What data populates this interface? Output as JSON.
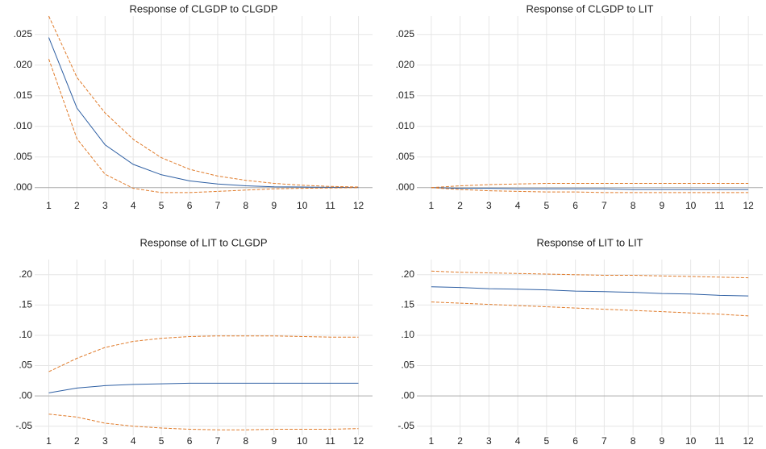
{
  "chart_data": [
    {
      "type": "line",
      "title": "Response of CLGDP to CLGDP",
      "categories": [
        "1",
        "2",
        "3",
        "4",
        "5",
        "6",
        "7",
        "8",
        "9",
        "10",
        "11",
        "12"
      ],
      "ylim": [
        -0.002,
        0.028
      ],
      "yticks": [
        {
          "value": 0,
          "label": ".000"
        },
        {
          "value": 0.005,
          "label": ".005"
        },
        {
          "value": 0.01,
          "label": ".010"
        },
        {
          "value": 0.015,
          "label": ".015"
        },
        {
          "value": 0.02,
          "label": ".020"
        },
        {
          "value": 0.025,
          "label": ".025"
        }
      ],
      "grid": true,
      "series": [
        {
          "color": "#2e5fa3",
          "dashed": false,
          "values": [
            0.0245,
            0.013,
            0.007,
            0.0038,
            0.0021,
            0.0011,
            0.0006,
            0.0003,
            0.00015,
            0.0001,
            5e-05,
            2e-05
          ]
        },
        {
          "color": "#e07b2a",
          "dashed": true,
          "values": [
            0.028,
            0.018,
            0.0122,
            0.0079,
            0.0049,
            0.003,
            0.0019,
            0.0012,
            0.0007,
            0.0004,
            0.0002,
            0.0001
          ]
        },
        {
          "color": "#e07b2a",
          "dashed": true,
          "values": [
            0.021,
            0.008,
            0.0022,
            -0.0001,
            -0.0008,
            -0.0008,
            -0.0006,
            -0.0004,
            -0.0002,
            -0.0001,
            -5e-05,
            0
          ]
        }
      ]
    },
    {
      "type": "line",
      "title": "Response of CLGDP to LIT",
      "categories": [
        "1",
        "2",
        "3",
        "4",
        "5",
        "6",
        "7",
        "8",
        "9",
        "10",
        "11",
        "12"
      ],
      "ylim": [
        -0.002,
        0.028
      ],
      "yticks": [
        {
          "value": 0,
          "label": ".000"
        },
        {
          "value": 0.005,
          "label": ".005"
        },
        {
          "value": 0.01,
          "label": ".010"
        },
        {
          "value": 0.015,
          "label": ".015"
        },
        {
          "value": 0.02,
          "label": ".020"
        },
        {
          "value": 0.025,
          "label": ".025"
        }
      ],
      "grid": true,
      "series": [
        {
          "color": "#2e5fa3",
          "dashed": false,
          "values": [
            0,
            -0.0001,
            -0.0001,
            -0.0002,
            -0.0002,
            -0.0002,
            -0.0002,
            -0.0003,
            -0.0003,
            -0.0003,
            -0.0003,
            -0.0003
          ]
        },
        {
          "color": "#e07b2a",
          "dashed": true,
          "values": [
            0,
            0.0003,
            0.0005,
            0.0006,
            0.0007,
            0.0007,
            0.0007,
            0.0007,
            0.0007,
            0.0007,
            0.0007,
            0.0007
          ]
        },
        {
          "color": "#e07b2a",
          "dashed": true,
          "values": [
            0,
            -0.0003,
            -0.0005,
            -0.0006,
            -0.0007,
            -0.0007,
            -0.0008,
            -0.0008,
            -0.0008,
            -0.0008,
            -0.0008,
            -0.0008
          ]
        }
      ]
    },
    {
      "type": "line",
      "title": "Response of LIT to CLGDP",
      "categories": [
        "1",
        "2",
        "3",
        "4",
        "5",
        "6",
        "7",
        "8",
        "9",
        "10",
        "11",
        "12"
      ],
      "ylim": [
        -0.065,
        0.225
      ],
      "yticks": [
        {
          "value": -0.05,
          "label": "-.05"
        },
        {
          "value": 0,
          "label": ".00"
        },
        {
          "value": 0.05,
          "label": ".05"
        },
        {
          "value": 0.1,
          "label": ".10"
        },
        {
          "value": 0.15,
          "label": ".15"
        },
        {
          "value": 0.2,
          "label": ".20"
        }
      ],
      "grid": true,
      "series": [
        {
          "color": "#2e5fa3",
          "dashed": false,
          "values": [
            0.005,
            0.013,
            0.017,
            0.019,
            0.02,
            0.021,
            0.021,
            0.021,
            0.021,
            0.021,
            0.021,
            0.021
          ]
        },
        {
          "color": "#e07b2a",
          "dashed": true,
          "values": [
            0.04,
            0.062,
            0.08,
            0.09,
            0.095,
            0.098,
            0.099,
            0.099,
            0.099,
            0.098,
            0.097,
            0.097
          ]
        },
        {
          "color": "#e07b2a",
          "dashed": true,
          "values": [
            -0.03,
            -0.035,
            -0.045,
            -0.05,
            -0.053,
            -0.055,
            -0.056,
            -0.056,
            -0.055,
            -0.055,
            -0.055,
            -0.054
          ]
        }
      ]
    },
    {
      "type": "line",
      "title": "Response of LIT to LIT",
      "categories": [
        "1",
        "2",
        "3",
        "4",
        "5",
        "6",
        "7",
        "8",
        "9",
        "10",
        "11",
        "12"
      ],
      "ylim": [
        -0.065,
        0.225
      ],
      "yticks": [
        {
          "value": -0.05,
          "label": "-.05"
        },
        {
          "value": 0,
          "label": ".00"
        },
        {
          "value": 0.05,
          "label": ".05"
        },
        {
          "value": 0.1,
          "label": ".10"
        },
        {
          "value": 0.15,
          "label": ".15"
        },
        {
          "value": 0.2,
          "label": ".20"
        }
      ],
      "grid": true,
      "series": [
        {
          "color": "#2e5fa3",
          "dashed": false,
          "values": [
            0.18,
            0.179,
            0.177,
            0.176,
            0.175,
            0.173,
            0.172,
            0.171,
            0.169,
            0.168,
            0.166,
            0.165
          ]
        },
        {
          "color": "#e07b2a",
          "dashed": true,
          "values": [
            0.206,
            0.204,
            0.203,
            0.202,
            0.201,
            0.2,
            0.199,
            0.199,
            0.198,
            0.197,
            0.196,
            0.195
          ]
        },
        {
          "color": "#e07b2a",
          "dashed": true,
          "values": [
            0.155,
            0.153,
            0.151,
            0.149,
            0.147,
            0.145,
            0.143,
            0.141,
            0.139,
            0.137,
            0.135,
            0.132
          ]
        }
      ]
    }
  ]
}
